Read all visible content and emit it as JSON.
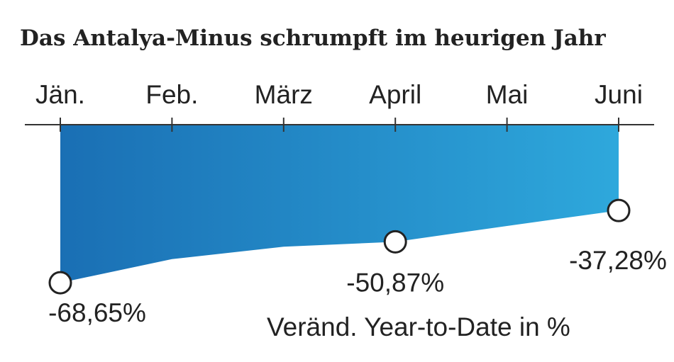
{
  "chart_data": {
    "type": "area",
    "title": "Das Antalya-Minus schrumpft im heurigen Jahr",
    "categories": [
      "Jän.",
      "Feb.",
      "März",
      "April",
      "Mai",
      "Juni"
    ],
    "values": [
      -68.65,
      -58.4,
      -53.0,
      -50.87,
      -44.0,
      -37.28
    ],
    "data_labels": [
      {
        "index": 0,
        "text": "-68,65%"
      },
      {
        "index": 3,
        "text": "-50,87%"
      },
      {
        "index": 5,
        "text": "-37,28%"
      }
    ],
    "note": "Veränd. Year-to-Date in %",
    "ylim": [
      -70,
      0
    ],
    "colors": {
      "fill_start": "#1a6fb4",
      "fill_end": "#2ea8dc",
      "axis": "#333333",
      "marker_stroke": "#222222"
    }
  }
}
